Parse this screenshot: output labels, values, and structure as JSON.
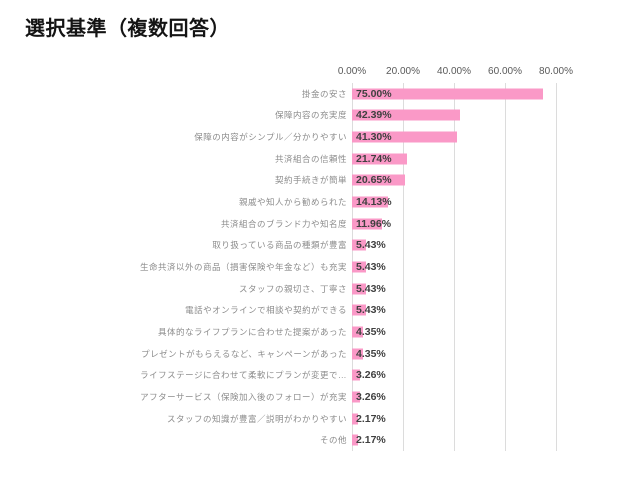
{
  "title": "選択基準（複数回答）",
  "chart_data": {
    "type": "bar",
    "orientation": "horizontal",
    "title": "選択基準（複数回答）",
    "categories": [
      "掛金の安さ",
      "保障内容の充実度",
      "保障の内容がシンプル／分かりやすい",
      "共済組合の信頼性",
      "契約手続きが簡単",
      "親戚や知人から勧められた",
      "共済組合のブランド力や知名度",
      "取り扱っている商品の種類が豊富",
      "生命共済以外の商品（損害保険や年金など）も充実",
      "スタッフの親切さ、丁寧さ",
      "電話やオンラインで相談や契約ができる",
      "具体的なライフプランに合わせた提案があった",
      "プレゼントがもらえるなど、キャンペーンがあった",
      "ライフステージに合わせて柔軟にプランが変更で…",
      "アフターサービス（保険加入後のフォロー）が充実",
      "スタッフの知識が豊富／説明がわかりやすい",
      "その他"
    ],
    "values": [
      75.0,
      42.39,
      41.3,
      21.74,
      20.65,
      14.13,
      11.96,
      5.43,
      5.43,
      5.43,
      5.43,
      4.35,
      4.35,
      3.26,
      3.26,
      2.17,
      2.17
    ],
    "value_labels": [
      "75.00%",
      "42.39%",
      "41.30%",
      "21.74%",
      "20.65%",
      "14.13%",
      "11.96%",
      "5.43%",
      "5.43%",
      "5.43%",
      "5.43%",
      "4.35%",
      "4.35%",
      "3.26%",
      "3.26%",
      "2.17%",
      "2.17%"
    ],
    "x_ticks": [
      "0.00%",
      "20.00%",
      "40.00%",
      "60.00%",
      "80.00%"
    ],
    "xlim": [
      0,
      80
    ],
    "grid": true,
    "legend": "none",
    "bar_color": "#fa99c7",
    "gridline_color": "#dcdcdc",
    "category_label_color": "#8c8c8c",
    "tick_label_color": "#595959",
    "value_label_color": "#404040"
  }
}
